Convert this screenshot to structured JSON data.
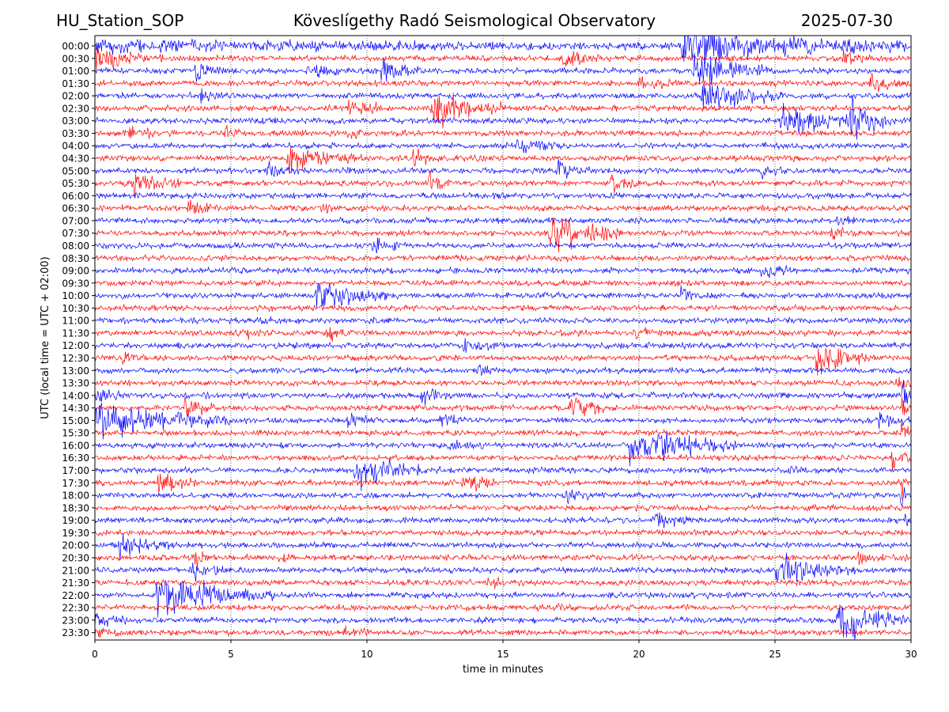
{
  "header": {
    "station": "HU_Station_SOP",
    "observatory": "Köveslígethy Radó Seismological Observatory",
    "date": "2025-07-30"
  },
  "chart_data": {
    "type": "line",
    "title": "Köveslígethy Radó Seismological Observatory",
    "xlabel": "time in minutes",
    "ylabel": "UTC (local time = UTC + 02:00)",
    "xlim": [
      0,
      30
    ],
    "x_ticks": [
      "0",
      "5",
      "10",
      "15",
      "20",
      "25",
      "30"
    ],
    "grid": "vertical dotted lines at each x tick",
    "colors": {
      "even_row": "#0000ff",
      "odd_row": "#ff0000"
    },
    "rows": [
      "00:00",
      "00:30",
      "01:00",
      "01:30",
      "02:00",
      "02:30",
      "03:00",
      "03:30",
      "04:00",
      "04:30",
      "05:00",
      "05:30",
      "06:00",
      "06:30",
      "07:00",
      "07:30",
      "08:00",
      "08:30",
      "09:00",
      "09:30",
      "10:00",
      "10:30",
      "11:00",
      "11:30",
      "12:00",
      "12:30",
      "13:00",
      "13:30",
      "14:00",
      "14:30",
      "15:00",
      "15:30",
      "16:00",
      "16:30",
      "17:00",
      "17:30",
      "18:00",
      "18:30",
      "19:00",
      "19:30",
      "20:00",
      "20:30",
      "21:00",
      "21:30",
      "22:00",
      "22:30",
      "23:00",
      "23:30"
    ],
    "events": [
      {
        "row": 0,
        "t": 0.0,
        "dur": 30,
        "amp": 0.55
      },
      {
        "row": 0,
        "t": 21.6,
        "dur": 8.4,
        "amp": 2.2
      },
      {
        "row": 1,
        "t": 0.0,
        "dur": 2.5,
        "amp": 1.2
      },
      {
        "row": 1,
        "t": 17.2,
        "dur": 1.5,
        "amp": 1.4
      },
      {
        "row": 1,
        "t": 27.5,
        "dur": 1.5,
        "amp": 1.0
      },
      {
        "row": 2,
        "t": 3.7,
        "dur": 1.0,
        "amp": 1.3
      },
      {
        "row": 2,
        "t": 7.8,
        "dur": 1.2,
        "amp": 1.0
      },
      {
        "row": 2,
        "t": 10.5,
        "dur": 1.5,
        "amp": 1.4
      },
      {
        "row": 2,
        "t": 22.0,
        "dur": 3.0,
        "amp": 2.0
      },
      {
        "row": 3,
        "t": 20.0,
        "dur": 1.5,
        "amp": 0.8
      },
      {
        "row": 3,
        "t": 28.5,
        "dur": 1.5,
        "amp": 0.8
      },
      {
        "row": 4,
        "t": 3.9,
        "dur": 0.8,
        "amp": 1.0
      },
      {
        "row": 4,
        "t": 22.3,
        "dur": 3.0,
        "amp": 2.4
      },
      {
        "row": 5,
        "t": 9.3,
        "dur": 1.5,
        "amp": 1.4
      },
      {
        "row": 5,
        "t": 12.4,
        "dur": 2.8,
        "amp": 2.2
      },
      {
        "row": 6,
        "t": 25.2,
        "dur": 3.5,
        "amp": 1.8
      },
      {
        "row": 6,
        "t": 27.8,
        "dur": 1.5,
        "amp": 2.5
      },
      {
        "row": 7,
        "t": 1.3,
        "dur": 1.0,
        "amp": 1.0
      },
      {
        "row": 7,
        "t": 4.8,
        "dur": 0.6,
        "amp": 0.8
      },
      {
        "row": 7,
        "t": 9.3,
        "dur": 0.8,
        "amp": 0.9
      },
      {
        "row": 8,
        "t": 15.5,
        "dur": 1.5,
        "amp": 0.9
      },
      {
        "row": 9,
        "t": 7.1,
        "dur": 2.8,
        "amp": 1.6
      },
      {
        "row": 9,
        "t": 11.7,
        "dur": 1.0,
        "amp": 0.8
      },
      {
        "row": 10,
        "t": 6.3,
        "dur": 1.3,
        "amp": 0.9
      },
      {
        "row": 10,
        "t": 17.0,
        "dur": 1.5,
        "amp": 1.0
      },
      {
        "row": 10,
        "t": 24.5,
        "dur": 0.8,
        "amp": 0.6
      },
      {
        "row": 11,
        "t": 1.3,
        "dur": 2.0,
        "amp": 1.4
      },
      {
        "row": 11,
        "t": 12.3,
        "dur": 0.8,
        "amp": 1.0
      },
      {
        "row": 11,
        "t": 19.0,
        "dur": 1.0,
        "amp": 1.6
      },
      {
        "row": 13,
        "t": 3.4,
        "dur": 1.0,
        "amp": 1.1
      },
      {
        "row": 13,
        "t": 8.2,
        "dur": 1.0,
        "amp": 0.7
      },
      {
        "row": 14,
        "t": 27.3,
        "dur": 0.8,
        "amp": 0.6
      },
      {
        "row": 15,
        "t": 16.7,
        "dur": 2.7,
        "amp": 2.6
      },
      {
        "row": 15,
        "t": 27.0,
        "dur": 1.0,
        "amp": 0.6
      },
      {
        "row": 16,
        "t": 10.2,
        "dur": 1.0,
        "amp": 1.2
      },
      {
        "row": 17,
        "t": 29.8,
        "dur": 0.2,
        "amp": 0.6
      },
      {
        "row": 18,
        "t": 24.4,
        "dur": 1.2,
        "amp": 1.3
      },
      {
        "row": 18,
        "t": 4.9,
        "dur": 0.6,
        "amp": 0.5
      },
      {
        "row": 20,
        "t": 8.1,
        "dur": 2.7,
        "amp": 2.3
      },
      {
        "row": 20,
        "t": 21.5,
        "dur": 1.0,
        "amp": 0.9
      },
      {
        "row": 22,
        "t": 6.1,
        "dur": 0.4,
        "amp": 0.6
      },
      {
        "row": 23,
        "t": 5.3,
        "dur": 1.0,
        "amp": 0.9
      },
      {
        "row": 23,
        "t": 8.5,
        "dur": 1.0,
        "amp": 1.0
      },
      {
        "row": 23,
        "t": 19.8,
        "dur": 1.2,
        "amp": 0.6
      },
      {
        "row": 24,
        "t": 13.6,
        "dur": 1.2,
        "amp": 0.9
      },
      {
        "row": 25,
        "t": 26.5,
        "dur": 2.3,
        "amp": 2.0
      },
      {
        "row": 25,
        "t": 1.0,
        "dur": 0.6,
        "amp": 0.6
      },
      {
        "row": 26,
        "t": 14.0,
        "dur": 1.0,
        "amp": 0.6
      },
      {
        "row": 27,
        "t": 29.5,
        "dur": 0.5,
        "amp": 1.2
      },
      {
        "row": 28,
        "t": 0.0,
        "dur": 1.0,
        "amp": 1.0
      },
      {
        "row": 28,
        "t": 12.0,
        "dur": 1.2,
        "amp": 0.8
      },
      {
        "row": 28,
        "t": 29.7,
        "dur": 0.3,
        "amp": 2.0
      },
      {
        "row": 29,
        "t": 3.3,
        "dur": 1.3,
        "amp": 1.3
      },
      {
        "row": 29,
        "t": 17.5,
        "dur": 1.5,
        "amp": 1.4
      },
      {
        "row": 29,
        "t": 29.7,
        "dur": 0.3,
        "amp": 2.4
      },
      {
        "row": 30,
        "t": 0.0,
        "dur": 5.0,
        "amp": 2.4
      },
      {
        "row": 30,
        "t": 9.3,
        "dur": 1.3,
        "amp": 0.8
      },
      {
        "row": 30,
        "t": 12.7,
        "dur": 1.0,
        "amp": 1.0
      },
      {
        "row": 30,
        "t": 28.8,
        "dur": 1.2,
        "amp": 1.0
      },
      {
        "row": 31,
        "t": 29.6,
        "dur": 0.4,
        "amp": 2.5
      },
      {
        "row": 32,
        "t": 19.6,
        "dur": 4.0,
        "amp": 2.4
      },
      {
        "row": 32,
        "t": 13.0,
        "dur": 1.5,
        "amp": 0.6
      },
      {
        "row": 33,
        "t": 29.3,
        "dur": 0.7,
        "amp": 1.4
      },
      {
        "row": 34,
        "t": 9.5,
        "dur": 3.2,
        "amp": 2.0
      },
      {
        "row": 34,
        "t": 25.5,
        "dur": 1.0,
        "amp": 0.6
      },
      {
        "row": 35,
        "t": 2.3,
        "dur": 1.5,
        "amp": 1.6
      },
      {
        "row": 35,
        "t": 13.5,
        "dur": 1.3,
        "amp": 1.3
      },
      {
        "row": 35,
        "t": 29.6,
        "dur": 0.3,
        "amp": 2.0
      },
      {
        "row": 36,
        "t": 17.3,
        "dur": 1.0,
        "amp": 0.8
      },
      {
        "row": 36,
        "t": 29.6,
        "dur": 0.3,
        "amp": 2.0
      },
      {
        "row": 38,
        "t": 20.5,
        "dur": 1.3,
        "amp": 1.0
      },
      {
        "row": 38,
        "t": 29.8,
        "dur": 0.2,
        "amp": 0.8
      },
      {
        "row": 40,
        "t": 0.9,
        "dur": 2.0,
        "amp": 1.2
      },
      {
        "row": 41,
        "t": 3.7,
        "dur": 0.5,
        "amp": 1.5
      },
      {
        "row": 41,
        "t": 6.8,
        "dur": 0.6,
        "amp": 0.6
      },
      {
        "row": 41,
        "t": 28.0,
        "dur": 1.0,
        "amp": 0.6
      },
      {
        "row": 42,
        "t": 3.5,
        "dur": 1.5,
        "amp": 1.0
      },
      {
        "row": 42,
        "t": 25.0,
        "dur": 3.0,
        "amp": 1.8
      },
      {
        "row": 43,
        "t": 14.4,
        "dur": 0.8,
        "amp": 0.7
      },
      {
        "row": 44,
        "t": 2.3,
        "dur": 4.3,
        "amp": 2.5
      },
      {
        "row": 45,
        "t": 17.0,
        "dur": 0.6,
        "amp": 0.6
      },
      {
        "row": 46,
        "t": 0.0,
        "dur": 1.3,
        "amp": 0.9
      },
      {
        "row": 46,
        "t": 27.3,
        "dur": 2.5,
        "amp": 2.5
      },
      {
        "row": 47,
        "t": 0.0,
        "dur": 1.0,
        "amp": 0.7
      },
      {
        "row": 47,
        "t": 9.2,
        "dur": 1.0,
        "amp": 0.7
      }
    ]
  }
}
